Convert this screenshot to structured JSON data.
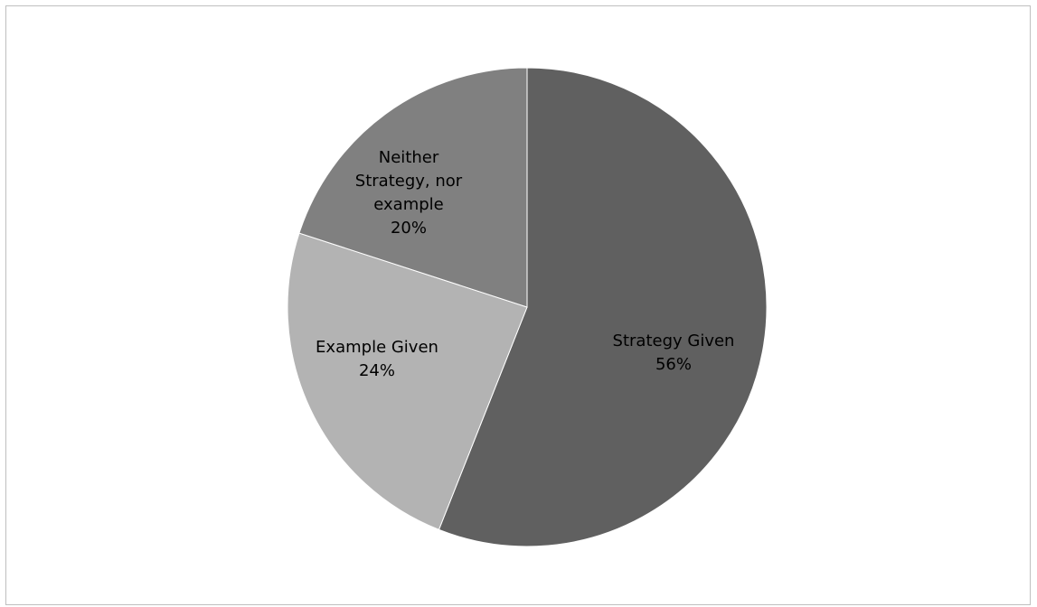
{
  "chart_data": {
    "type": "pie",
    "slices": [
      {
        "label": "Strategy Given",
        "value": 56,
        "percent_label": "56%",
        "color": "#606060",
        "label_lines": [
          "Strategy Given"
        ]
      },
      {
        "label": "Example Given",
        "value": 24,
        "percent_label": "24%",
        "color": "#b3b3b3",
        "label_lines": [
          "Example Given"
        ]
      },
      {
        "label": "Neither Strategy, nor example",
        "value": 20,
        "percent_label": "20%",
        "color": "#808080",
        "label_lines": [
          "Neither",
          "Strategy, nor",
          "example"
        ]
      }
    ],
    "title": "",
    "legend": "none",
    "start_angle_deg": 0,
    "direction": "clockwise"
  }
}
